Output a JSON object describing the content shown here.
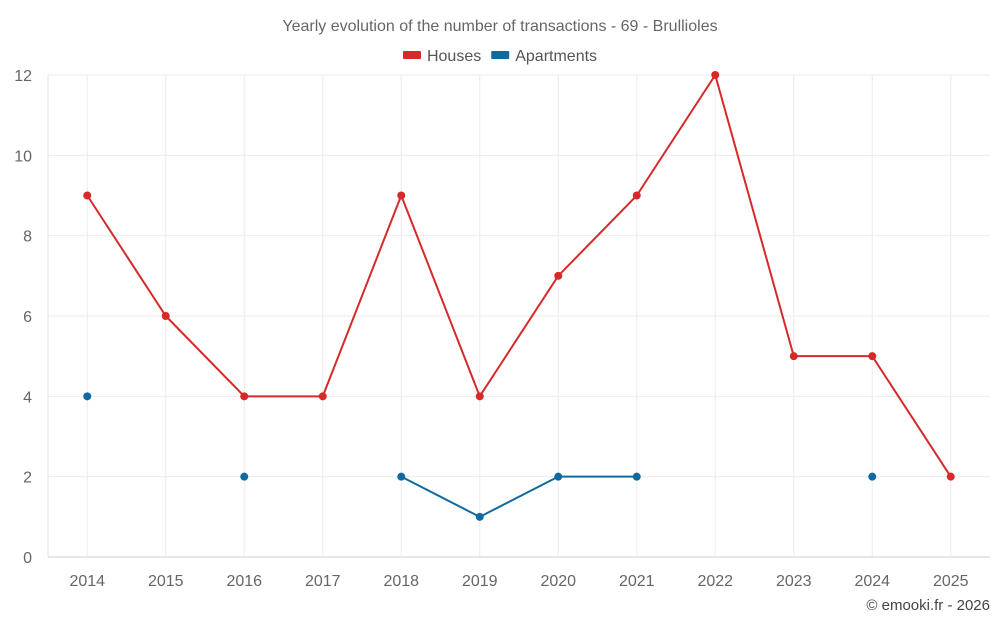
{
  "chart_data": {
    "type": "line",
    "title": "Yearly evolution of the number of transactions - 69 - Brullioles",
    "xlabel": "",
    "ylabel": "",
    "categories": [
      "2014",
      "2015",
      "2016",
      "2017",
      "2018",
      "2019",
      "2020",
      "2021",
      "2022",
      "2023",
      "2024",
      "2025"
    ],
    "ylim": [
      0,
      12
    ],
    "yticks": [
      0,
      2,
      4,
      6,
      8,
      10,
      12
    ],
    "grid": true,
    "legend_position": "top-center",
    "series": [
      {
        "name": "Houses",
        "color": "#d62a2a",
        "values": [
          9,
          6,
          4,
          4,
          9,
          4,
          7,
          9,
          12,
          5,
          5,
          2
        ]
      },
      {
        "name": "Apartments",
        "color": "#0f6aa0",
        "values": [
          4,
          null,
          2,
          null,
          2,
          1,
          2,
          2,
          null,
          null,
          2,
          null
        ]
      }
    ]
  },
  "credit": "© emooki.fr - 2026"
}
